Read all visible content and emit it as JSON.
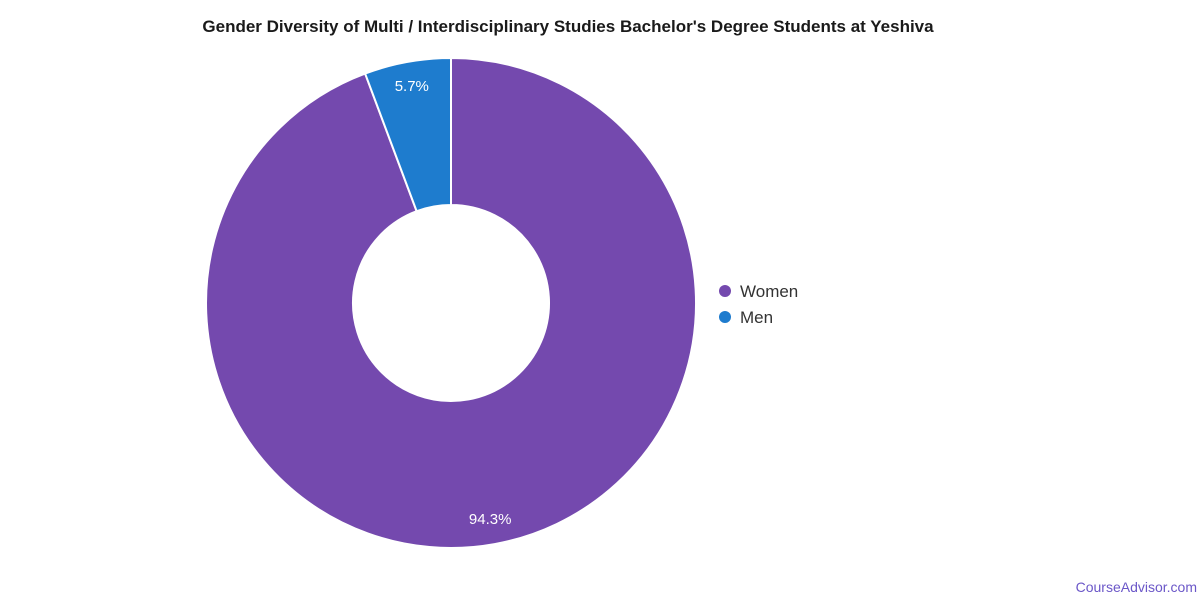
{
  "chart_data": {
    "type": "pie",
    "title": "Gender Diversity of Multi / Interdisciplinary Studies Bachelor's Degree Students at Yeshiva",
    "categories": [
      "Women",
      "Men"
    ],
    "values": [
      94.3,
      5.7
    ],
    "slice_labels": [
      "94.3%",
      "5.7%"
    ],
    "colors": [
      "#7449AE",
      "#1E7CCE"
    ],
    "donut_hole_ratio": 0.4,
    "start_angle_deg": 0,
    "direction": "clockwise",
    "slice_label_color": "#FFFFFF",
    "slice_border_color": "#FFFFFF",
    "legend_position": "right",
    "legend_text_color": "#333333",
    "background_color": "#FFFFFF"
  },
  "footer": {
    "link_text": "CourseAdvisor.com",
    "link_color": "#6B57C8"
  }
}
